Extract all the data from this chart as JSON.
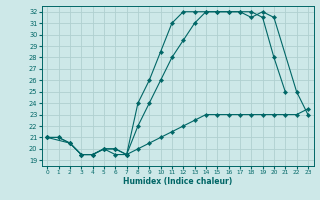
{
  "xlabel": "Humidex (Indice chaleur)",
  "xlim": [
    -0.5,
    23.5
  ],
  "ylim": [
    18.5,
    32.5
  ],
  "xticks": [
    0,
    1,
    2,
    3,
    4,
    5,
    6,
    7,
    8,
    9,
    10,
    11,
    12,
    13,
    14,
    15,
    16,
    17,
    18,
    19,
    20,
    21,
    22,
    23
  ],
  "yticks": [
    19,
    20,
    21,
    22,
    23,
    24,
    25,
    26,
    27,
    28,
    29,
    30,
    31,
    32
  ],
  "background_color": "#cde8e8",
  "line_color": "#006666",
  "grid_color": "#b0d0d0",
  "curve1_x": [
    0,
    1,
    2,
    3,
    4,
    5,
    6,
    7,
    8,
    9,
    10,
    11,
    12,
    13,
    14,
    15,
    16,
    17,
    18,
    19,
    20,
    21,
    22,
    23
  ],
  "curve1_y": [
    21.0,
    21.0,
    20.5,
    19.5,
    19.5,
    20.0,
    19.5,
    19.5,
    20.0,
    20.5,
    21.0,
    21.5,
    22.0,
    22.5,
    23.0,
    23.0,
    23.0,
    23.0,
    23.0,
    23.0,
    23.0,
    23.0,
    23.0,
    23.5
  ],
  "curve2_x": [
    0,
    1,
    2,
    3,
    4,
    5,
    6,
    7,
    8,
    9,
    10,
    11,
    12,
    13,
    14,
    15,
    16,
    17,
    18,
    19,
    20,
    21
  ],
  "curve2_y": [
    21.0,
    21.0,
    20.5,
    19.5,
    19.5,
    20.0,
    20.0,
    19.5,
    22.0,
    24.0,
    26.0,
    28.0,
    29.5,
    31.0,
    32.0,
    32.0,
    32.0,
    32.0,
    32.0,
    31.5,
    28.0,
    25.0
  ],
  "curve3_x": [
    0,
    2,
    3,
    4,
    5,
    6,
    7,
    8,
    9,
    10,
    11,
    12,
    13,
    14,
    15,
    16,
    17,
    18,
    19,
    20,
    22,
    23
  ],
  "curve3_y": [
    21.0,
    20.5,
    19.5,
    19.5,
    20.0,
    20.0,
    19.5,
    24.0,
    26.0,
    28.5,
    31.0,
    32.0,
    32.0,
    32.0,
    32.0,
    32.0,
    32.0,
    31.5,
    32.0,
    31.5,
    25.0,
    23.0
  ]
}
